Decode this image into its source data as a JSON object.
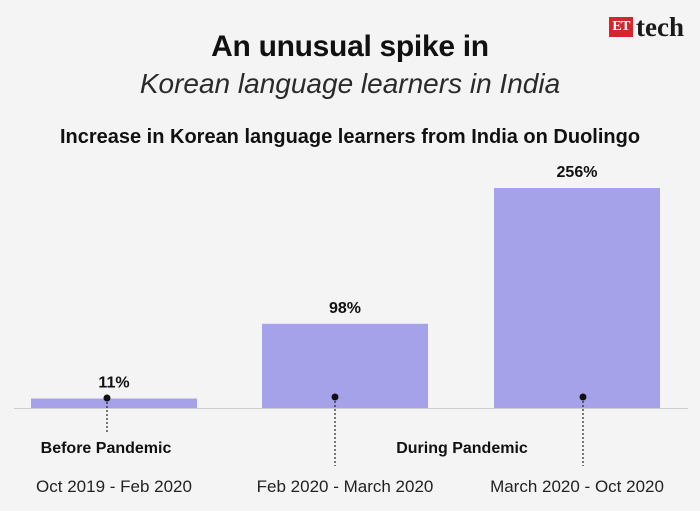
{
  "logo": {
    "badge": "ET",
    "word": "tech"
  },
  "title": "An unusual spike in",
  "subtitle": "Korean language learners in India",
  "chart_title": "Increase in Korean language learners from India on Duolingo",
  "colors": {
    "bar": "#a6a2ea",
    "text": "#111111",
    "background": "#f4f4f4",
    "logo_red": "#d6262d"
  },
  "chart_data": {
    "type": "bar",
    "categories": [
      "Oct 2019 - Feb 2020",
      "Feb 2020 - March 2020",
      "March 2020 - Oct 2020"
    ],
    "values": [
      11,
      98,
      256
    ],
    "value_labels": [
      "11%",
      "98%",
      "256%"
    ],
    "unit": "%",
    "ylim": [
      0,
      256
    ],
    "grid": false,
    "groups": [
      {
        "label": "Before Pandemic",
        "categories": [
          0
        ]
      },
      {
        "label": "During Pandemic",
        "categories": [
          1,
          2
        ]
      }
    ]
  }
}
